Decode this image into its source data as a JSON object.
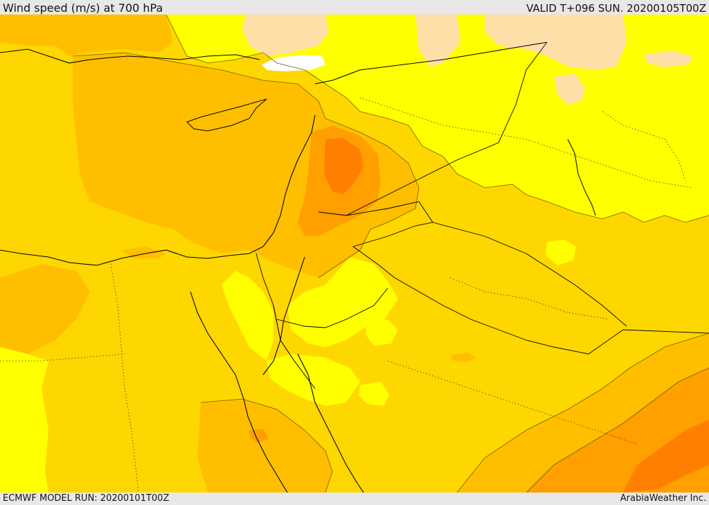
{
  "header": {
    "title": "Wind speed (m/s) at 700 hPa",
    "valid_time": "VALID T+096 SUN. 20200105T00Z"
  },
  "footer": {
    "model_run": "ECMWF MODEL RUN: 20200101T00Z",
    "credit": "ArabiaWeather Inc."
  },
  "map": {
    "colors": {
      "calm": "#ffffff",
      "light": "#ffdfa8",
      "low": "#ffff00",
      "moderate": "#ffd700",
      "fresh": "#ffbf00",
      "strong": "#ff9f00",
      "very_strong": "#ff8000",
      "coastline": "#000000",
      "border": "#000000",
      "contour": "#7a5a00"
    }
  }
}
